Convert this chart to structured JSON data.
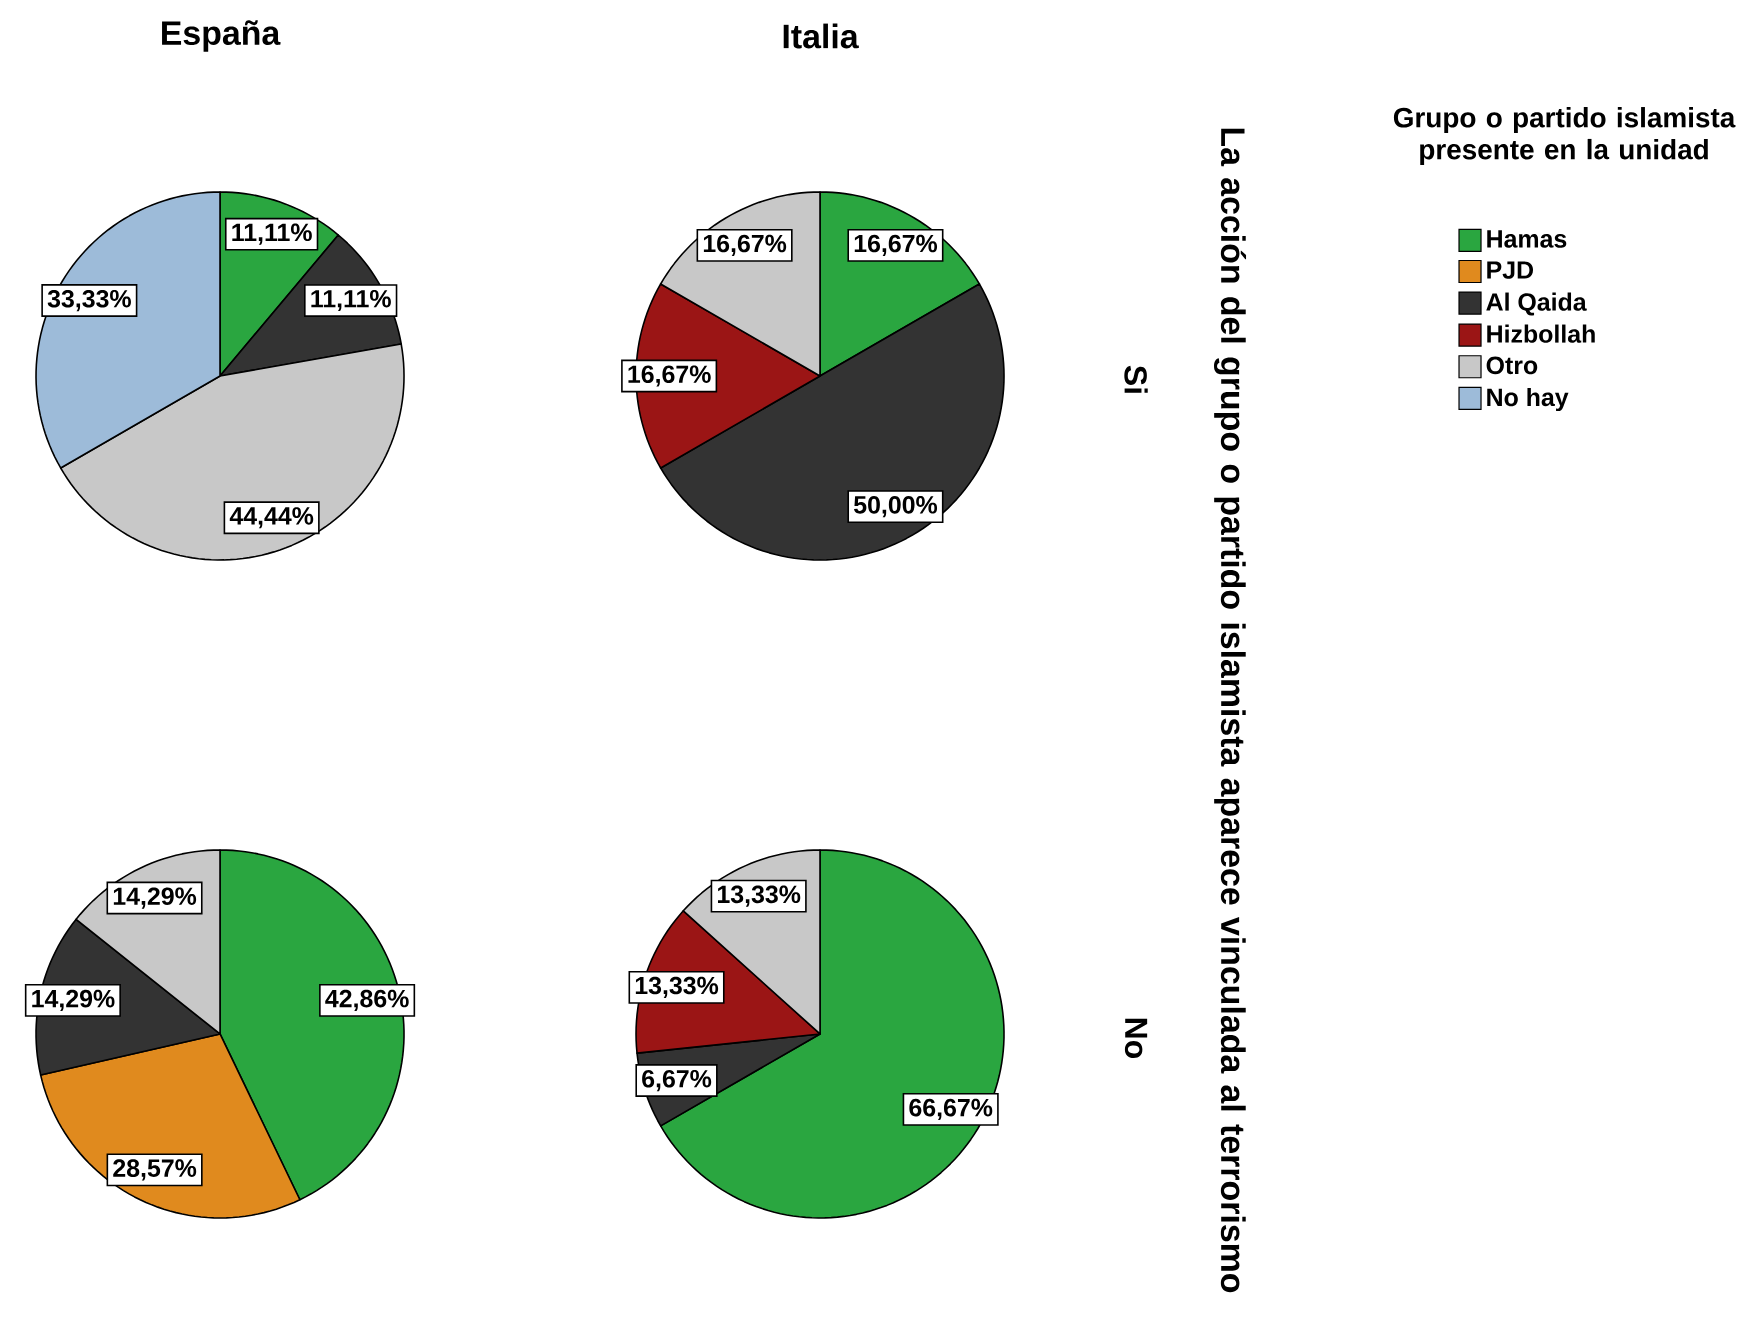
{
  "chart_data": [
    {
      "type": "pie",
      "title": "España",
      "categories": [
        null,
        null,
        null,
        null,
        null,
        null
      ],
      "values": [
        11.11,
        0,
        11.11,
        0,
        44.44,
        33.33
      ],
      "value_labels": [
        "11,11%",
        null,
        "11,11%",
        null,
        "44,44%",
        "33,33%"
      ],
      "colors": [
        "#2aa640",
        "#e08a1e",
        "#333333",
        "#9b1515",
        "#c8c8c8",
        "#9dbbd9"
      ]
    },
    {
      "type": "pie",
      "title": "Italia",
      "y2label": "La acción del grupo o partido islamista aparece vinculada al terrorismo",
      "annotations": [
        "Si"
      ],
      "legend": "right",
      "legend_title": "Grupo o partido islamista presente en la unidad",
      "categories": [
        "Hamas",
        "PJD",
        "Al Qaida",
        "Hizbollah",
        "Otro",
        "No hay"
      ],
      "values": [
        16.67,
        0,
        50.0,
        16.67,
        16.67,
        0
      ],
      "value_labels": [
        "16,67%",
        null,
        "50,00%",
        "16,67%",
        "16,67%",
        null
      ],
      "colors": [
        "#2aa640",
        "#e08a1e",
        "#333333",
        "#9b1515",
        "#c8c8c8",
        "#9dbbd9"
      ]
    },
    {
      "type": "pie",
      "categories": [
        null,
        null,
        null,
        null,
        null,
        null
      ],
      "values": [
        42.86,
        28.57,
        14.29,
        0,
        14.29,
        0
      ],
      "value_labels": [
        "42,86%",
        "28,57%",
        "14,29%",
        null,
        "14,29%",
        null
      ],
      "colors": [
        "#2aa640",
        "#e08a1e",
        "#333333",
        "#9b1515",
        "#c8c8c8",
        "#9dbbd9"
      ]
    },
    {
      "type": "pie",
      "annotations": [
        "No"
      ],
      "categories": [
        null,
        null,
        null,
        null,
        null,
        null
      ],
      "values": [
        66.67,
        0,
        6.67,
        13.33,
        13.33,
        0
      ],
      "value_labels": [
        "66,67%",
        null,
        "6,67%",
        "13,33%",
        "13,33%",
        null
      ],
      "colors": [
        "#2aa640",
        "#e08a1e",
        "#333333",
        "#9b1515",
        "#c8c8c8",
        "#9dbbd9"
      ]
    }
  ]
}
